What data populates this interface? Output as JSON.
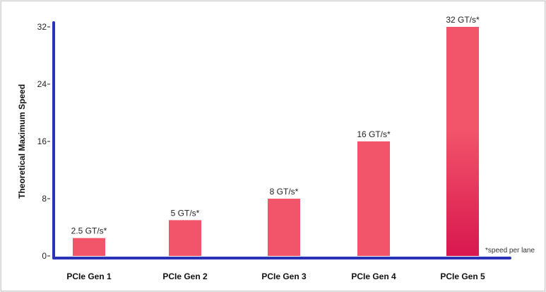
{
  "chart_data": {
    "type": "bar",
    "categories": [
      "PCIe Gen 1",
      "PCIe Gen 2",
      "PCIe Gen 3",
      "PCIe Gen 4",
      "PCIe Gen 5"
    ],
    "values": [
      2.5,
      5,
      8,
      16,
      32
    ],
    "data_labels": [
      "2.5 GT/s*",
      "5 GT/s*",
      "8 GT/s*",
      "16 GT/s*",
      "32 GT/s*"
    ],
    "ylabel": "Theoretical Maximum Speed",
    "yticks": [
      0,
      8,
      16,
      24,
      32
    ],
    "ylim": [
      0,
      32
    ],
    "grid": false,
    "footnote": "*speed per lane",
    "colors": {
      "axis": "#2a33b5",
      "bar": "#f2546a",
      "bar_dark": "#d8174f"
    }
  }
}
